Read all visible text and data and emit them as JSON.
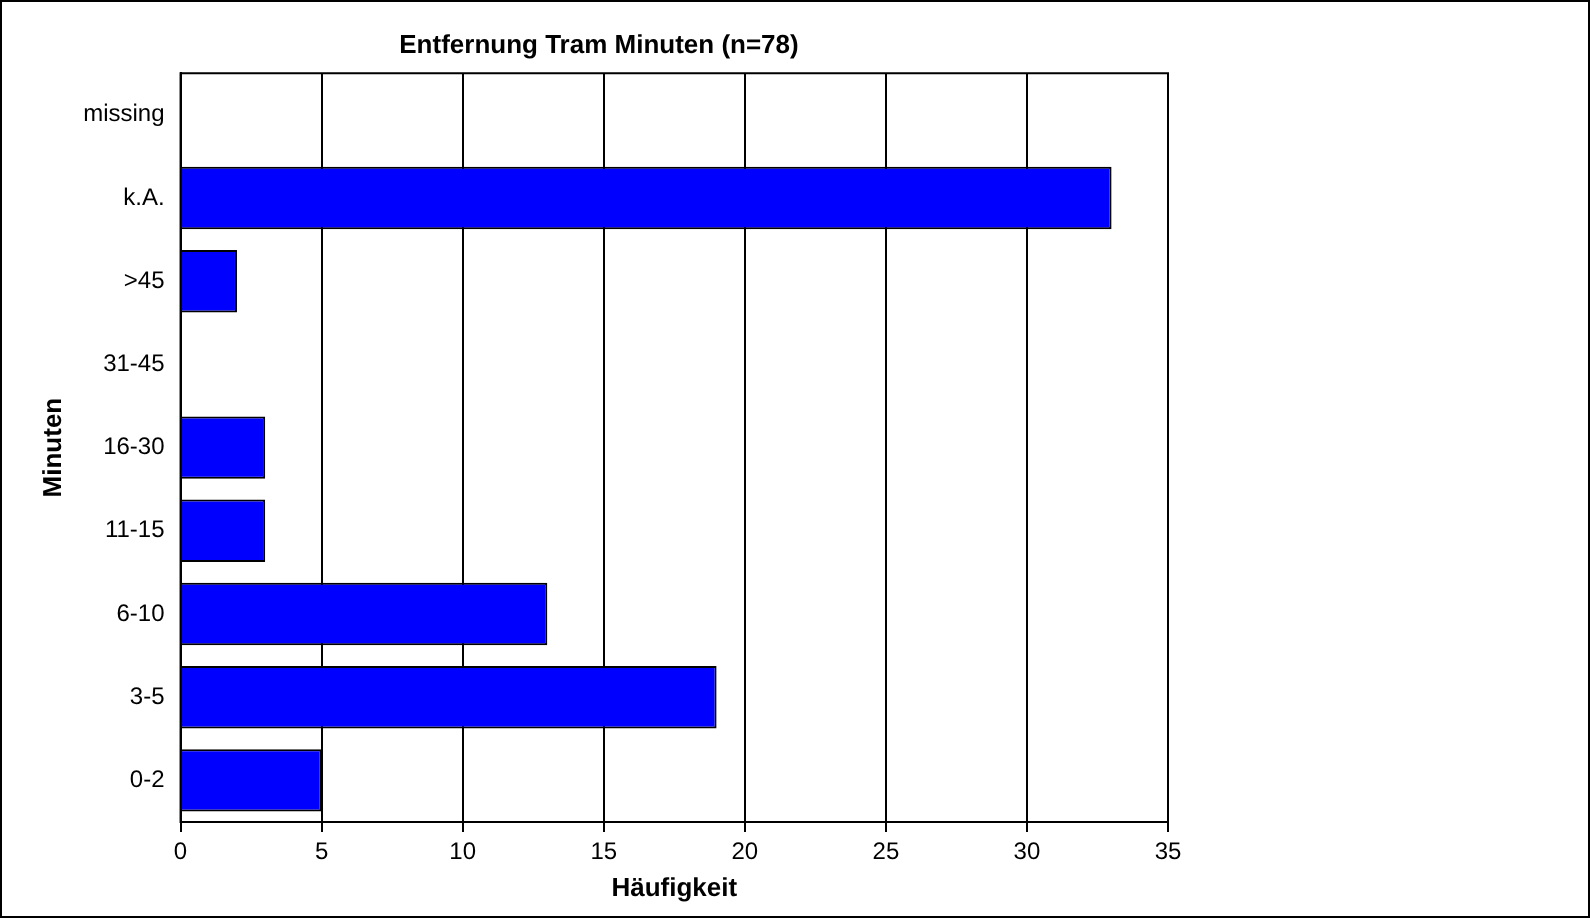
{
  "chart_data": {
    "type": "bar",
    "orientation": "horizontal",
    "title": "Entfernung Tram Minuten (n=78)",
    "xlabel": "Häufigkeit",
    "ylabel": "Minuten",
    "categories": [
      "missing",
      "k.A.",
      ">45",
      "31-45",
      "16-30",
      "11-15",
      "6-10",
      "3-5",
      "0-2"
    ],
    "values": [
      0,
      33,
      2,
      0,
      3,
      3,
      13,
      19,
      5
    ],
    "color": "#0000ff",
    "xlim": [
      0,
      35
    ],
    "xticks": [
      0,
      5,
      10,
      15,
      20,
      25,
      30,
      35
    ],
    "grid": "x",
    "legend": false
  }
}
